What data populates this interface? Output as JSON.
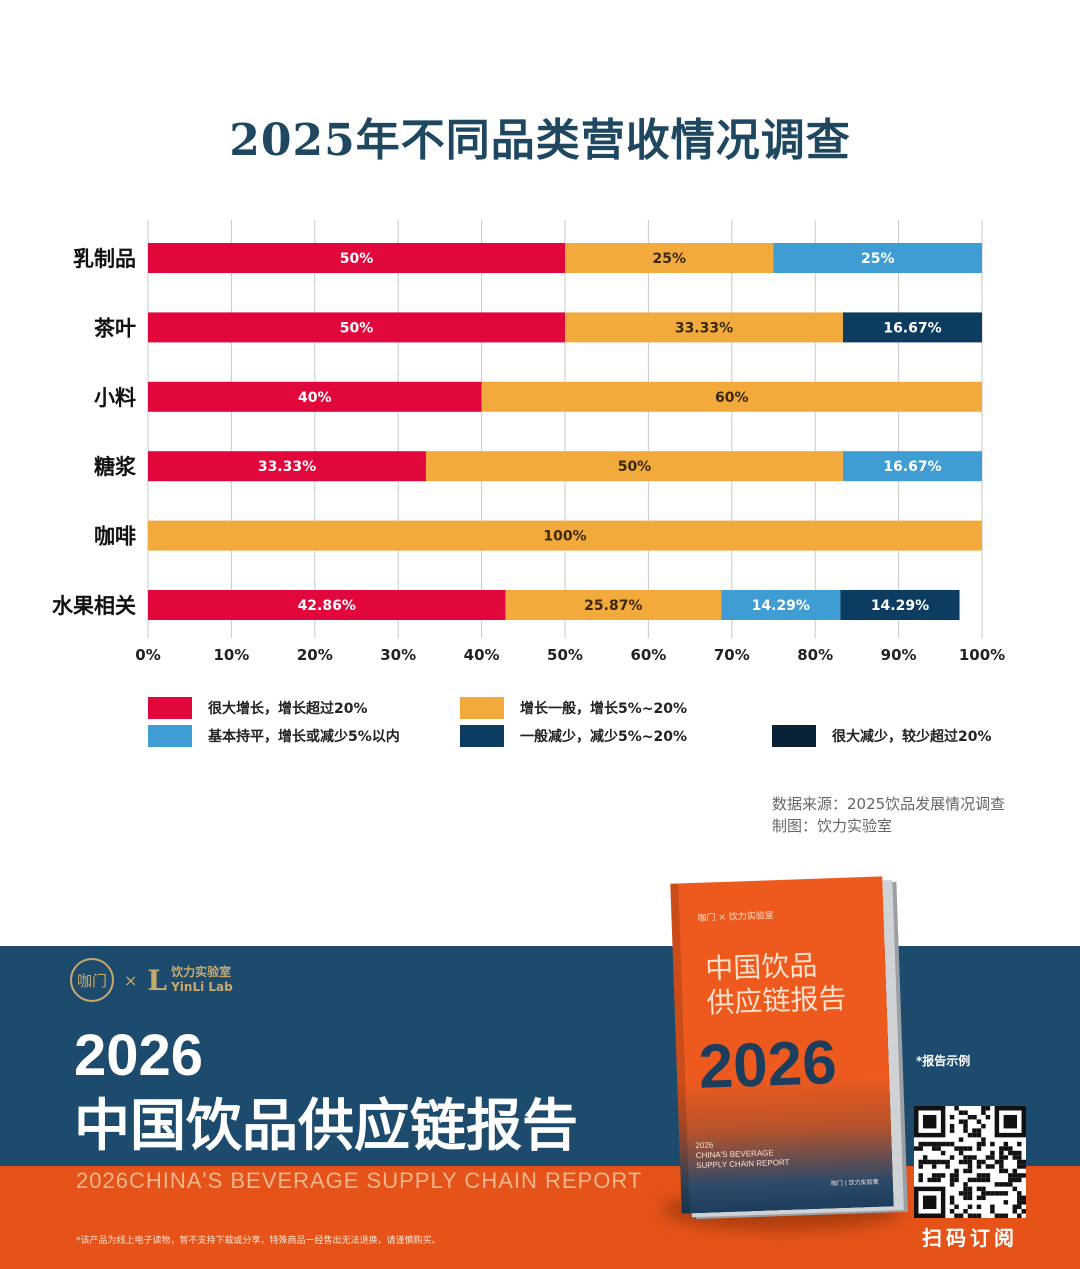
{
  "chart_data": {
    "type": "bar",
    "orientation": "horizontal",
    "stacked": true,
    "title": "2025年不同品类营收情况调查",
    "categories": [
      "乳制品",
      "茶叶",
      "小料",
      "糖浆",
      "咖啡",
      "水果相关"
    ],
    "series": [
      {
        "name": "很大增长，增长超过20%",
        "color": "#e1063b",
        "values": [
          50,
          50,
          40,
          33.33,
          0,
          42.86
        ],
        "labels": [
          "50%",
          "50%",
          "40%",
          "33.33%",
          "",
          "42.86%"
        ]
      },
      {
        "name": "增长一般，增长5%~20%",
        "color": "#f3aa3c",
        "values": [
          25,
          33.33,
          60,
          50,
          100,
          25.87
        ],
        "labels": [
          "25%",
          "33.33%",
          "60%",
          "50%",
          "100%",
          "25.87%"
        ]
      },
      {
        "name": "基本持平，增长或减少5%以内",
        "color": "#3f9dd3",
        "values": [
          25,
          0,
          0,
          16.67,
          0,
          14.29
        ],
        "labels": [
          "25%",
          "",
          "",
          "16.67%",
          "",
          "14.29%"
        ]
      },
      {
        "name": "一般减少，减少5%~20%",
        "color": "#0c3c60",
        "values": [
          0,
          16.67,
          0,
          0,
          0,
          14.29
        ],
        "labels": [
          "",
          "16.67%",
          "",
          "",
          "",
          "14.29%"
        ]
      },
      {
        "name": "很大减少，较少超过20%",
        "color": "#0a2236",
        "values": [
          0,
          0,
          0,
          0,
          0,
          0
        ],
        "labels": [
          "",
          "",
          "",
          "",
          "",
          ""
        ]
      }
    ],
    "x_ticks": [
      "0%",
      "10%",
      "20%",
      "30%",
      "40%",
      "50%",
      "60%",
      "70%",
      "80%",
      "90%",
      "100%"
    ],
    "xlim": [
      0,
      100
    ],
    "grid": true,
    "legend_position": "bottom"
  },
  "source": {
    "line1": "数据来源：2025饮品发展情况调查",
    "line2": "制图：饮力实验室"
  },
  "promo": {
    "seal_text": "咖门",
    "times": "×",
    "logo_mark": "L",
    "brand_cn": "饮力实验室",
    "brand_en": "YinLi Lab",
    "year": "2026",
    "title": "中国饮品供应链报告",
    "subtitle": "2026CHINA'S BEVERAGE SUPPLY CHAIN REPORT",
    "note": "*该产品为线上电子读物，暂不支持下载或分享，特殊商品一经售出无法退换，请谨慎购买。",
    "sample_tag": "*报告示例",
    "qr_label": "扫码订阅",
    "book": {
      "brand": "咖门 × 饮力实验室",
      "title_line1": "中国饮品",
      "title_line2": "供应链报告",
      "year": "2026",
      "en_line1": "2026",
      "en_line2": "CHINA'S BEVERAGE",
      "en_line3": "SUPPLY CHAIN REPORT",
      "footer": "咖门 | 饮力实验室"
    }
  }
}
